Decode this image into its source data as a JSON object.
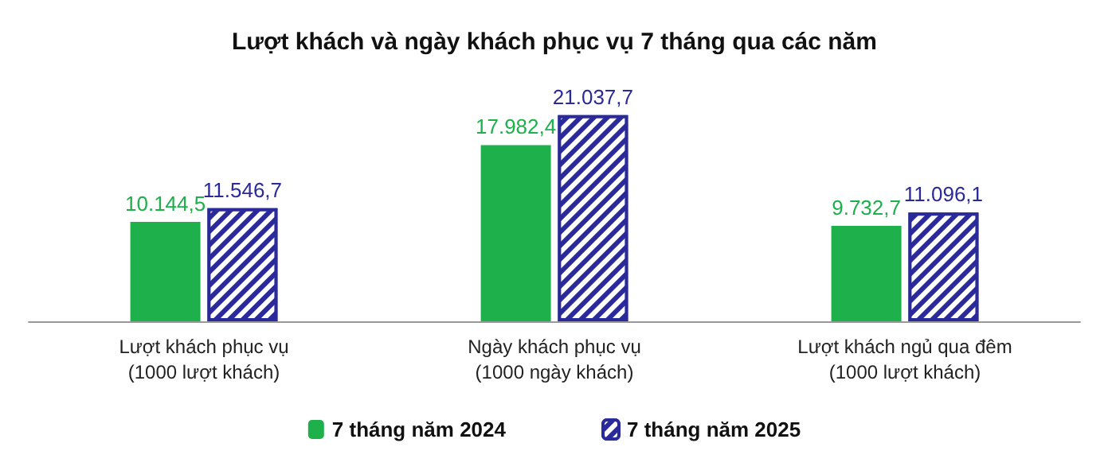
{
  "chart_data": {
    "type": "bar",
    "title": "Lượt khách và ngày khách phục vụ 7 tháng qua các năm",
    "categories": [
      "Lượt khách phục vụ\n(1000 lượt khách)",
      "Ngày khách phục vụ\n(1000 ngày khách)",
      "Lượt khách ngủ qua đêm\n(1000 lượt khách)"
    ],
    "series": [
      {
        "name": "7 tháng năm 2024",
        "color": "#1db04b",
        "values": [
          10144.5,
          17982.4,
          9732.7
        ],
        "value_labels": [
          "10.144,5",
          "17.982,4",
          "9.732,7"
        ]
      },
      {
        "name": "7 tháng năm 2025",
        "color": "#2a2a9a",
        "values": [
          11546.7,
          21037.7,
          11096.1
        ],
        "value_labels": [
          "11.546,7",
          "21.037,7",
          "11.096,1"
        ]
      }
    ],
    "legend": "bottom"
  }
}
